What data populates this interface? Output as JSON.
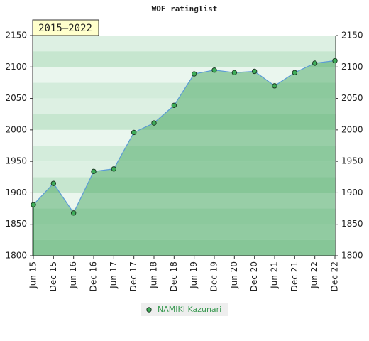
{
  "chart_data": {
    "type": "area",
    "title": "WOF ratinglist",
    "period": "2015–2022",
    "categories": [
      "Jun 15",
      "Dec 15",
      "Jun 16",
      "Dec 16",
      "Jun 17",
      "Dec 17",
      "Jun 18",
      "Dec 18",
      "Jun 19",
      "Dec 19",
      "Jun 20",
      "Dec 20",
      "Jun 21",
      "Dec 21",
      "Jun 22",
      "Dec 22"
    ],
    "series": [
      {
        "name": "NAMIKI Kazunari",
        "color": "#5b9bd5",
        "values": [
          1881,
          1915,
          1868,
          1934,
          1938,
          1996,
          2011,
          2039,
          2089,
          2095,
          2091,
          2093,
          2070,
          2091,
          2106,
          2110
        ]
      }
    ],
    "ylim": [
      1800,
      2150
    ],
    "yticks": [
      1800,
      1850,
      1900,
      1950,
      2000,
      2050,
      2100,
      2150
    ],
    "grid": true
  }
}
